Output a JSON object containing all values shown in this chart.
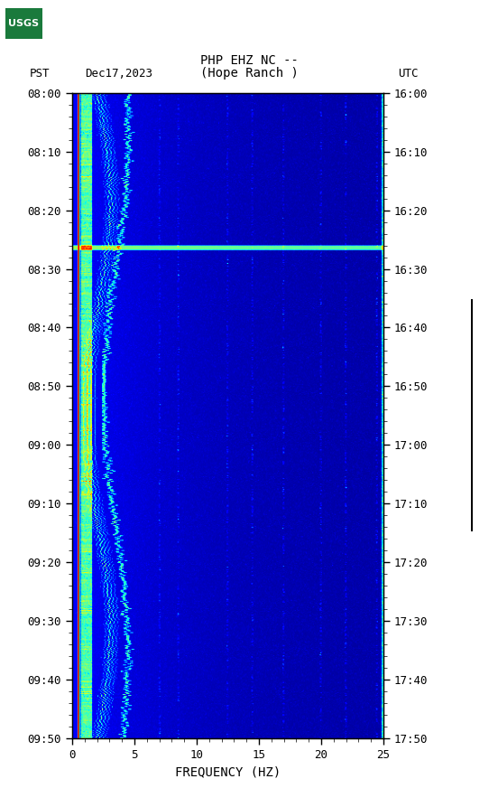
{
  "title_line1": "PHP EHZ NC --",
  "title_line2": "(Hope Ranch )",
  "left_label": "PST",
  "date_label": "Dec17,2023",
  "right_label": "UTC",
  "xlabel": "FREQUENCY (HZ)",
  "freq_min": 0,
  "freq_max": 25,
  "ytick_pst": [
    "08:00",
    "08:10",
    "08:20",
    "08:30",
    "08:40",
    "08:50",
    "09:00",
    "09:10",
    "09:20",
    "09:30",
    "09:40",
    "09:50"
  ],
  "ytick_utc": [
    "16:00",
    "16:10",
    "16:20",
    "16:30",
    "16:40",
    "16:50",
    "17:00",
    "17:10",
    "17:20",
    "17:30",
    "17:40",
    "17:50"
  ],
  "xticks": [
    0,
    5,
    10,
    15,
    20,
    25
  ],
  "background_color": "#ffffff",
  "fig_width": 5.52,
  "fig_height": 8.93,
  "colormap": "jet",
  "vmin": 0,
  "vmax": 6,
  "seed": 12345
}
